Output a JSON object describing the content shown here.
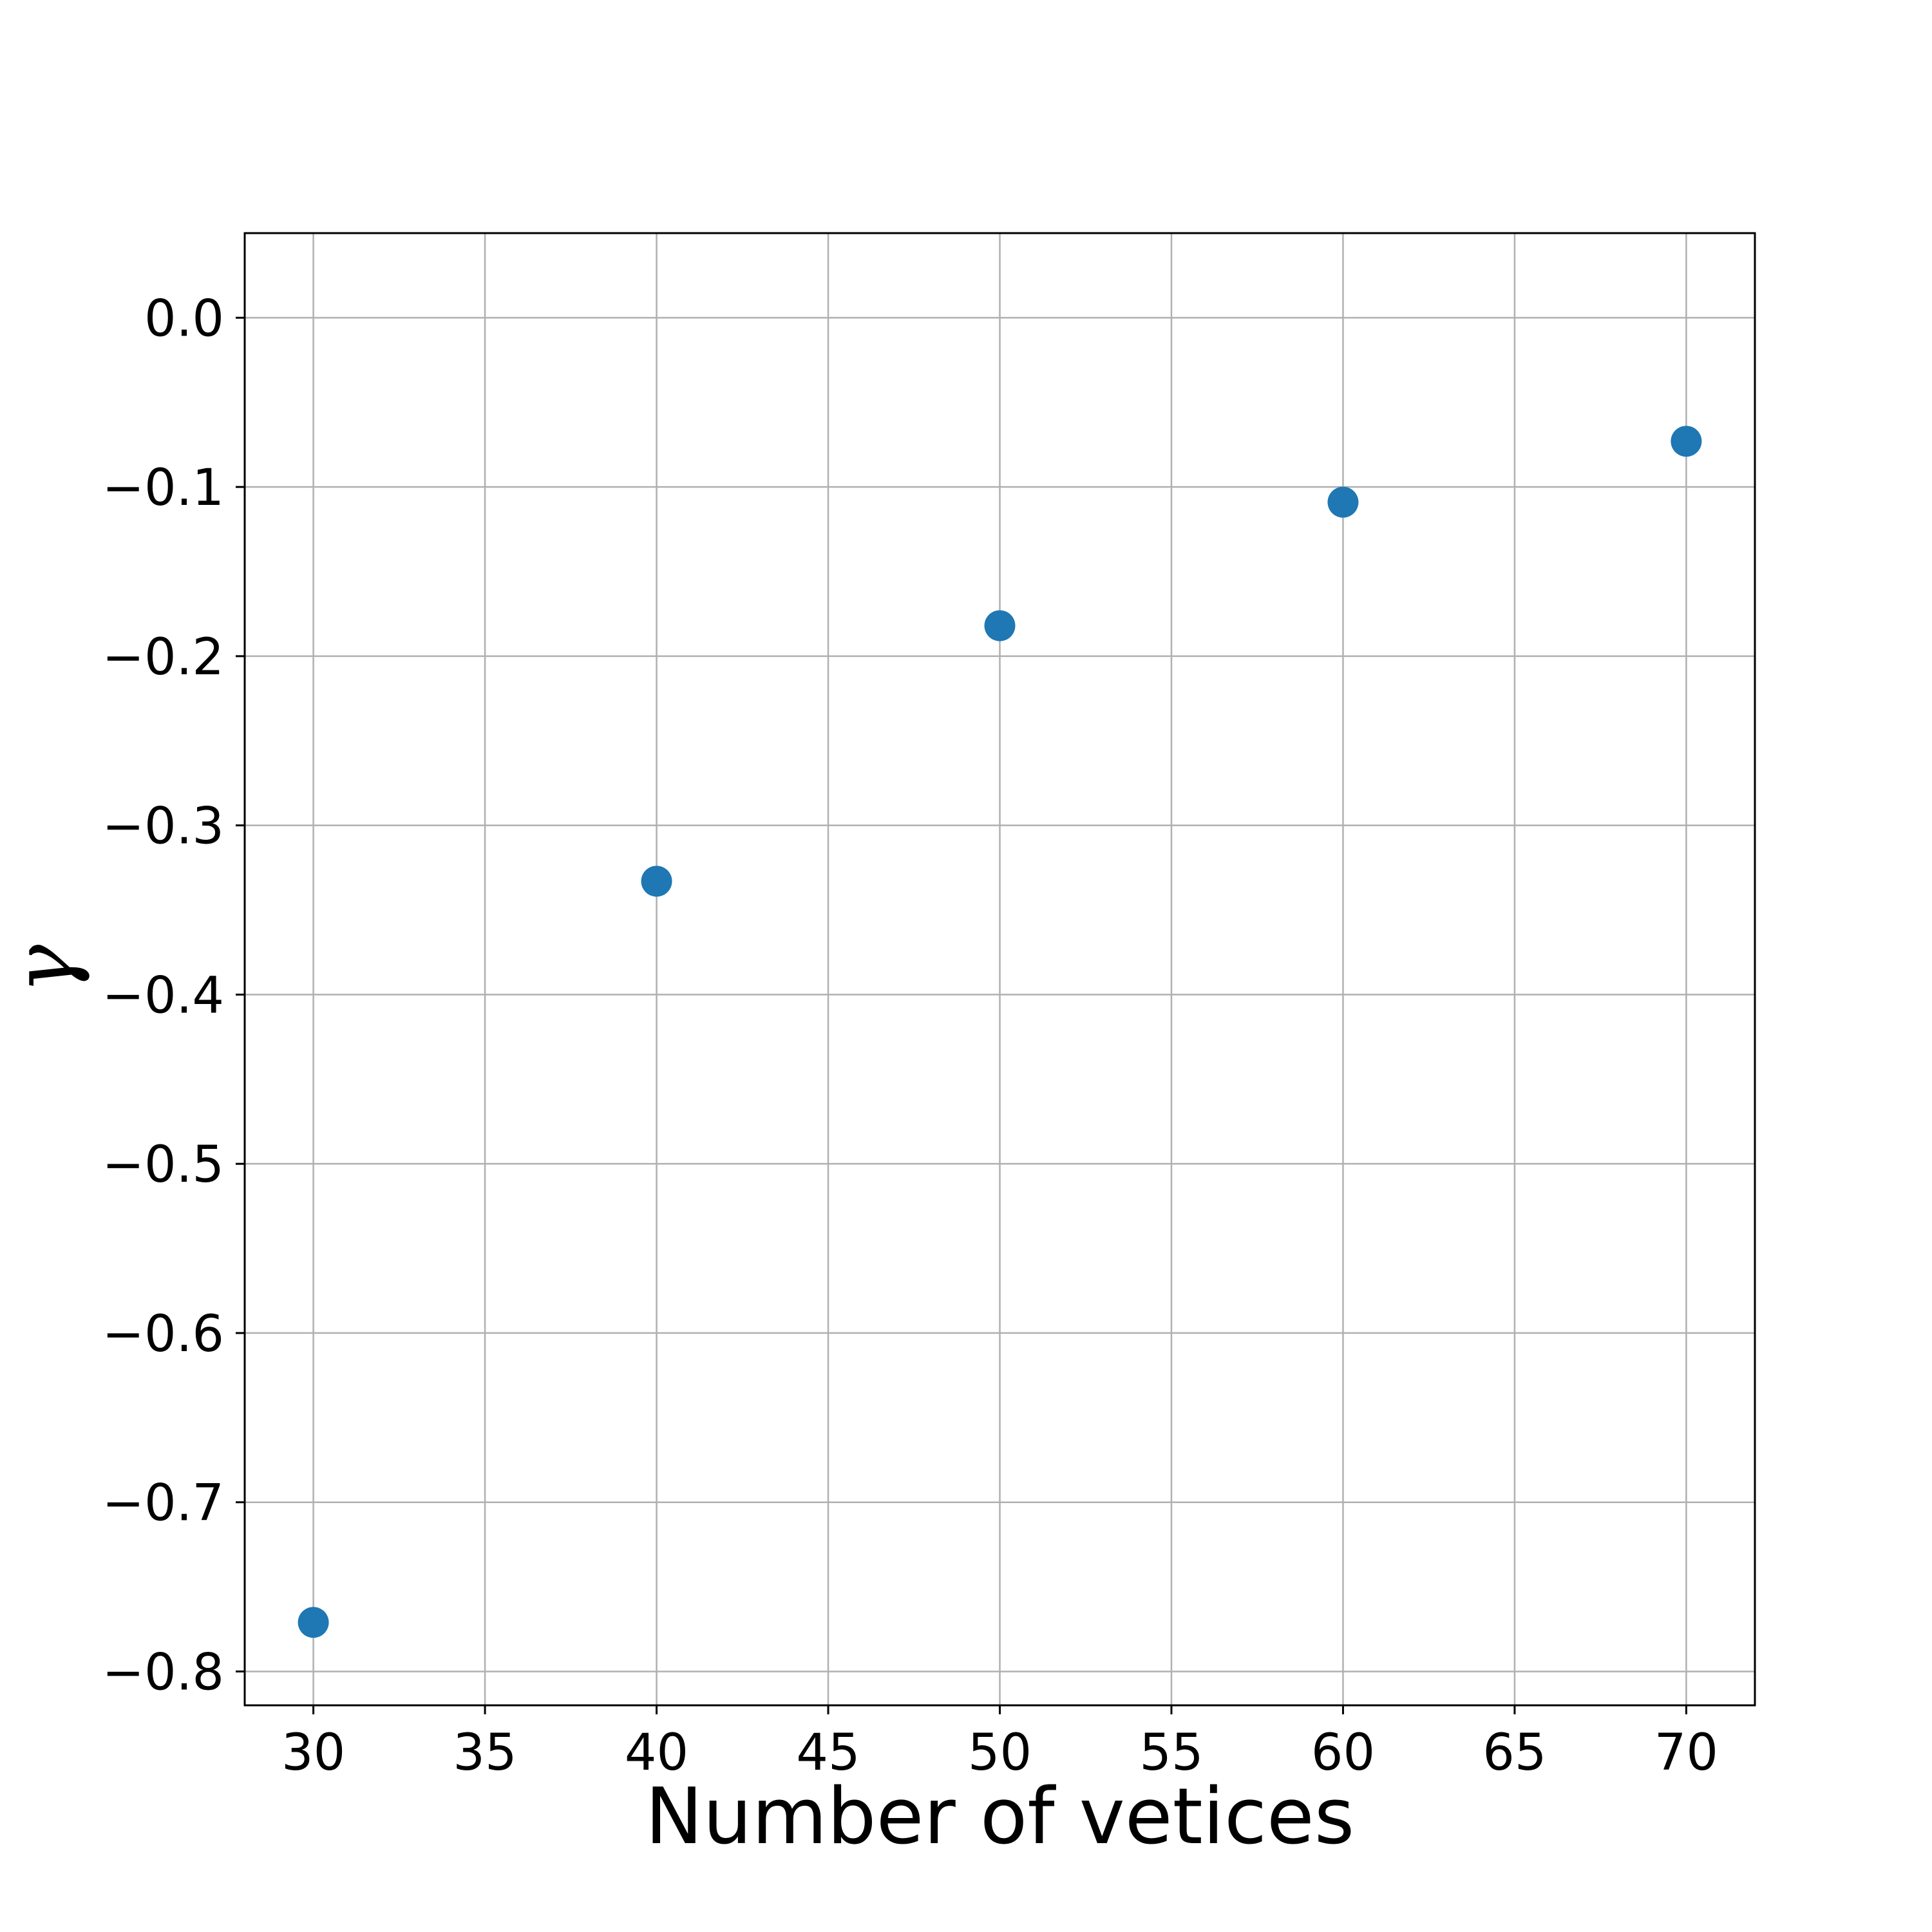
{
  "chart_data": {
    "type": "scatter",
    "title": "",
    "xlabel": "Number of vetices",
    "ylabel": "γ",
    "xlim": [
      28,
      72
    ],
    "ylim": [
      -0.82,
      0.05
    ],
    "xticks": [
      30,
      35,
      40,
      45,
      50,
      55,
      60,
      65,
      70
    ],
    "xtick_labels": [
      "30",
      "35",
      "40",
      "45",
      "50",
      "55",
      "60",
      "65",
      "70"
    ],
    "yticks": [
      0.0,
      -0.1,
      -0.2,
      -0.3,
      -0.4,
      -0.5,
      -0.6,
      -0.7,
      -0.8
    ],
    "ytick_labels": [
      "0.0",
      "−0.1",
      "−0.2",
      "−0.3",
      "−0.4",
      "−0.5",
      "−0.6",
      "−0.7",
      "−0.8"
    ],
    "grid": true,
    "series": [
      {
        "x": [
          30,
          40,
          50,
          60,
          70
        ],
        "y": [
          -0.771,
          -0.333,
          -0.182,
          -0.109,
          -0.073
        ]
      }
    ],
    "colors": {
      "marker": "#1f77b4",
      "grid": "#b0b0b0",
      "axes": "#000000",
      "background": "#ffffff"
    }
  }
}
